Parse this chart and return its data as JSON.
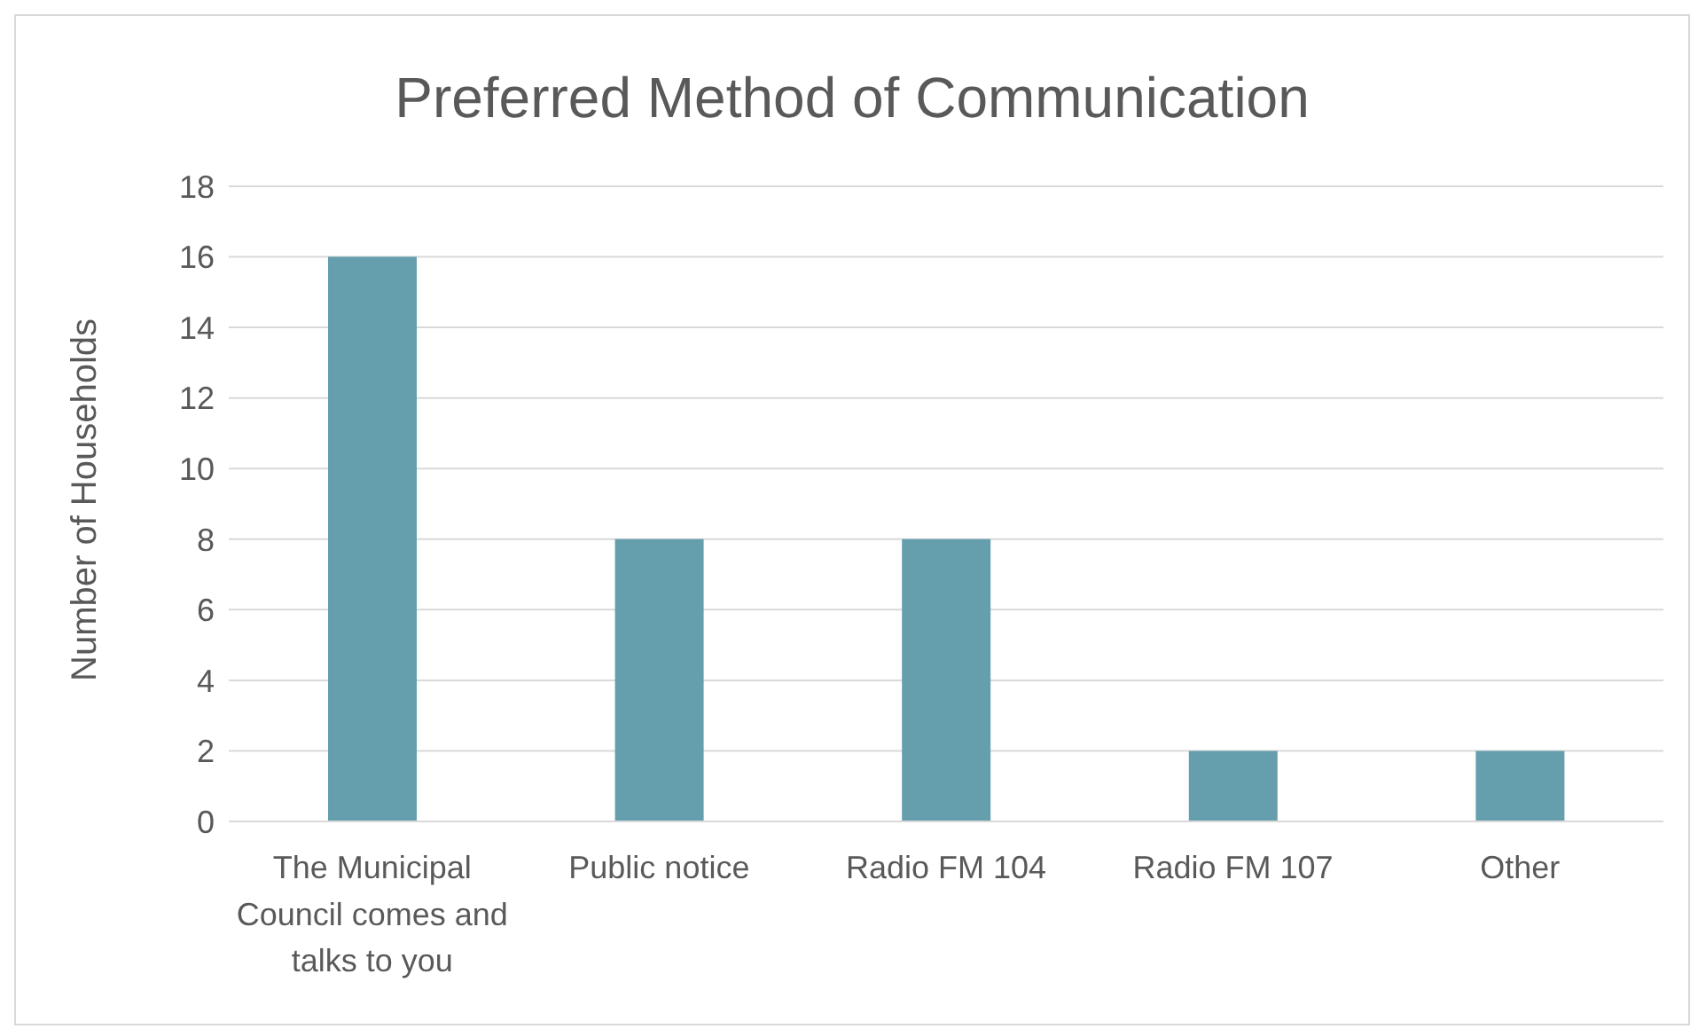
{
  "chart_data": {
    "type": "bar",
    "title": "Preferred Method of Communication",
    "ylabel": "Number of Households",
    "categories": [
      "The Municipal Council comes and talks to you",
      "Public notice",
      "Radio FM 104",
      "Radio FM 107",
      "Other"
    ],
    "values": [
      16,
      8,
      8,
      2,
      2
    ],
    "color": "#659fad",
    "ylim": [
      0,
      18
    ],
    "yticks": [
      0,
      2,
      4,
      6,
      8,
      10,
      12,
      14,
      16,
      18
    ],
    "grid": "y",
    "legend": false
  }
}
